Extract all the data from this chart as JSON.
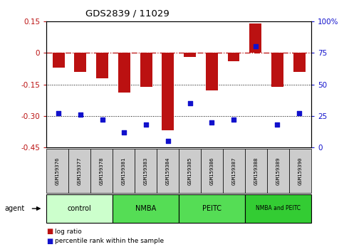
{
  "title": "GDS2839 / 11029",
  "samples": [
    "GSM159376",
    "GSM159377",
    "GSM159378",
    "GSM159381",
    "GSM159383",
    "GSM159384",
    "GSM159385",
    "GSM159386",
    "GSM159387",
    "GSM159388",
    "GSM159389",
    "GSM159390"
  ],
  "log_ratio": [
    -0.07,
    -0.09,
    -0.12,
    -0.19,
    -0.16,
    -0.37,
    -0.02,
    -0.18,
    -0.04,
    0.14,
    -0.16,
    -0.09
  ],
  "percentile_rank": [
    27,
    26,
    22,
    12,
    18,
    5,
    35,
    20,
    22,
    80,
    18,
    27
  ],
  "bar_color": "#bb1111",
  "dot_color": "#1111cc",
  "groups": [
    {
      "label": "control",
      "start": 0,
      "end": 3,
      "color": "#ccffcc"
    },
    {
      "label": "NMBA",
      "start": 3,
      "end": 6,
      "color": "#55dd55"
    },
    {
      "label": "PEITC",
      "start": 6,
      "end": 9,
      "color": "#55dd55"
    },
    {
      "label": "NMBA and PEITC",
      "start": 9,
      "end": 12,
      "color": "#33cc33"
    }
  ],
  "ylim_left": [
    -0.45,
    0.15
  ],
  "ylim_right": [
    0,
    100
  ],
  "yticks_left": [
    0.15,
    0.0,
    -0.15,
    -0.3,
    -0.45
  ],
  "yticks_left_labels": [
    "0.15",
    "0",
    "-0.15",
    "-0.30",
    "-0.45"
  ],
  "yticks_right": [
    100,
    75,
    50,
    25,
    0
  ],
  "yticks_right_labels": [
    "100%",
    "75",
    "50",
    "25",
    "0"
  ],
  "hline_dashdot": 0.0,
  "hlines_dotted": [
    -0.15,
    -0.3
  ],
  "legend_labels": [
    "log ratio",
    "percentile rank within the sample"
  ],
  "sample_box_color": "#cccccc",
  "bar_width": 0.55
}
